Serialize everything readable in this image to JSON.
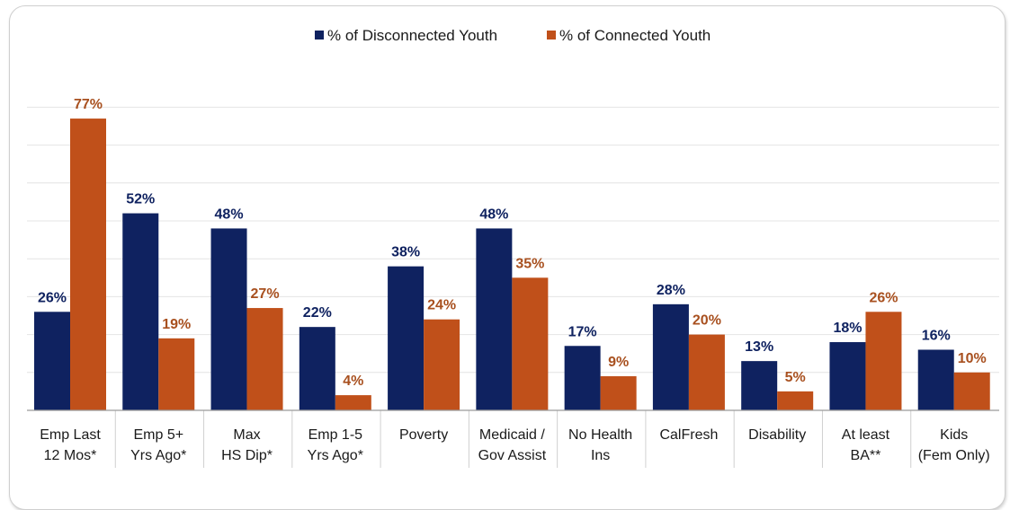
{
  "chart_data": {
    "type": "bar",
    "title": "",
    "xlabel": "",
    "ylabel": "",
    "ylim": [
      0,
      80
    ],
    "grid": true,
    "legend_position": "top-center",
    "categories": [
      [
        "Emp Last",
        "12 Mos*"
      ],
      [
        "Emp 5+",
        "Yrs Ago*"
      ],
      [
        "Max",
        "HS Dip*"
      ],
      [
        "Emp 1-5",
        "Yrs Ago*"
      ],
      [
        "Poverty"
      ],
      [
        "Medicaid /",
        "Gov Assist"
      ],
      [
        "No Health",
        "Ins"
      ],
      [
        "CalFresh"
      ],
      [
        "Disability"
      ],
      [
        "At least",
        "BA**"
      ],
      [
        "Kids",
        "(Fem Only)"
      ]
    ],
    "series": [
      {
        "name": "% of Disconnected Youth",
        "color": "#0f2260",
        "label_color": "#0f2260",
        "values": [
          26,
          52,
          48,
          22,
          38,
          48,
          17,
          28,
          13,
          18,
          16
        ],
        "labels": [
          "26%",
          "52%",
          "48%",
          "22%",
          "38%",
          "48%",
          "17%",
          "28%",
          "13%",
          "18%",
          "16%"
        ]
      },
      {
        "name": "% of Connected Youth",
        "color": "#c0501a",
        "label_color": "#a8501f",
        "values": [
          77,
          19,
          27,
          4,
          24,
          35,
          9,
          20,
          5,
          26,
          10
        ],
        "labels": [
          "77%",
          "19%",
          "27%",
          "4%",
          "24%",
          "35%",
          "9%",
          "20%",
          "5%",
          "26%",
          "10%"
        ]
      }
    ]
  }
}
